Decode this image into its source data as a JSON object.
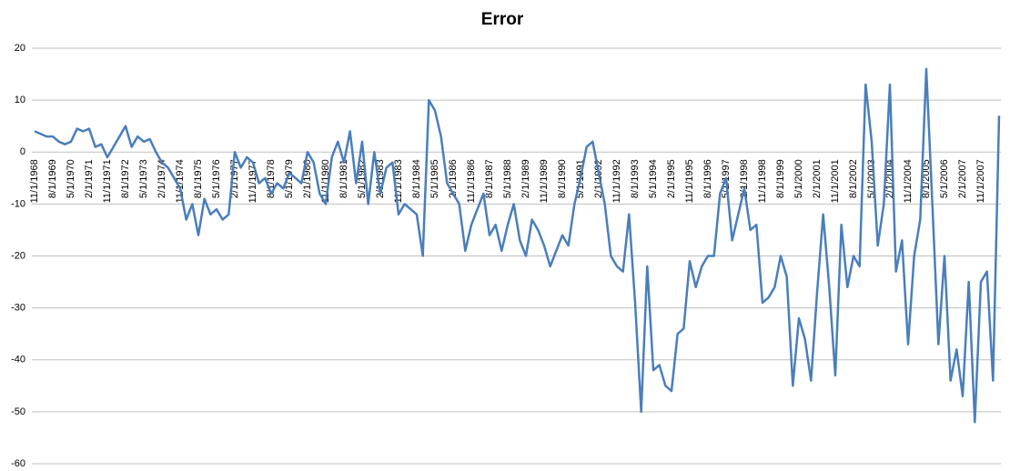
{
  "chart_data": {
    "type": "line",
    "title": "Error",
    "categories": [
      "11/1/1968",
      null,
      null,
      "8/1/1969",
      null,
      null,
      "5/1/1970",
      null,
      null,
      "2/1/1971",
      null,
      null,
      "11/1/1971",
      null,
      null,
      "8/1/1972",
      null,
      null,
      "5/1/1973",
      null,
      null,
      "2/1/1974",
      null,
      null,
      "11/1/1974",
      null,
      null,
      "8/1/1975",
      null,
      null,
      "5/1/1976",
      null,
      null,
      "2/1/1977",
      null,
      null,
      "11/1/1977",
      null,
      null,
      "8/1/1978",
      null,
      null,
      "5/1/1979",
      null,
      null,
      "2/1/1980",
      null,
      null,
      "11/1/1980",
      null,
      null,
      "8/1/1981",
      null,
      null,
      "5/1/1982",
      null,
      null,
      "2/1/1983",
      null,
      null,
      "11/1/1983",
      null,
      null,
      "8/1/1984",
      null,
      null,
      "5/1/1985",
      null,
      null,
      "2/1/1986",
      null,
      null,
      "11/1/1986",
      null,
      null,
      "8/1/1987",
      null,
      null,
      "5/1/1988",
      null,
      null,
      "2/1/1989",
      null,
      null,
      "11/1/1989",
      null,
      null,
      "8/1/1990",
      null,
      null,
      "5/1/1991",
      null,
      null,
      "2/1/1992",
      null,
      null,
      "11/1/1992",
      null,
      null,
      "8/1/1993",
      null,
      null,
      "5/1/1994",
      null,
      null,
      "2/1/1995",
      null,
      null,
      "11/1/1995",
      null,
      null,
      "8/1/1996",
      null,
      null,
      "5/1/1997",
      null,
      null,
      "2/1/1998",
      null,
      null,
      "11/1/1998",
      null,
      null,
      "8/1/1999",
      null,
      null,
      "5/1/2000",
      null,
      null,
      "2/1/2001",
      null,
      null,
      "11/1/2001",
      null,
      null,
      "8/1/2002",
      null,
      null,
      "5/1/2003",
      null,
      null,
      "2/1/2004",
      null,
      null,
      "11/1/2004",
      null,
      null,
      "8/1/2005",
      null,
      null,
      "5/1/2006",
      null,
      null,
      "2/1/2007",
      null,
      null,
      "11/1/2007",
      null,
      null,
      null
    ],
    "values": [
      4,
      3.5,
      3,
      3,
      2,
      1.5,
      2,
      4.5,
      4,
      4.5,
      1,
      1.5,
      -1,
      1,
      3,
      5,
      1,
      3,
      2,
      2.5,
      0,
      -2,
      -3,
      -5,
      -7,
      -13,
      -10,
      -16,
      -9,
      -12,
      -11,
      -13,
      -12,
      0,
      -3,
      -1,
      -2,
      -6,
      -5,
      -8,
      -6,
      -7,
      -4,
      -5,
      -6,
      0,
      -2,
      -8,
      -10,
      -1,
      2,
      -2,
      4,
      -6,
      2,
      -10,
      0,
      -8,
      -3,
      -2,
      -12,
      -10,
      -11,
      -12,
      -20,
      10,
      8,
      3,
      -6,
      -8,
      -10,
      -19,
      -14,
      -11,
      -8,
      -16,
      -14,
      -19,
      -14,
      -10,
      -17,
      -20,
      -13,
      -15,
      -18,
      -22,
      -19,
      -16,
      -18,
      -10,
      -5,
      1,
      2,
      -4,
      -10,
      -20,
      -22,
      -23,
      -12,
      -29,
      -50,
      -22,
      -42,
      -41,
      -45,
      -46,
      -35,
      -34,
      -21,
      -26,
      -22,
      -20,
      -20,
      -8,
      -5,
      -17,
      -12,
      -7,
      -15,
      -14,
      -29,
      -28,
      -26,
      -20,
      -24,
      -45,
      -32,
      -36,
      -44,
      -27,
      -12,
      -26,
      -43,
      -14,
      -26,
      -20,
      -22,
      13,
      2,
      -18,
      -10,
      13,
      -23,
      -17,
      -37,
      -20,
      -13,
      16,
      -10,
      -37,
      -20,
      -44,
      -38,
      -47,
      -25,
      -52,
      -25,
      -23,
      -44,
      7
    ],
    "color": "#4a7ebb",
    "ylim": [
      -60,
      20
    ],
    "yticks": [
      -60,
      -50,
      -40,
      -30,
      -20,
      -10,
      0,
      10,
      20
    ],
    "grid": true
  }
}
